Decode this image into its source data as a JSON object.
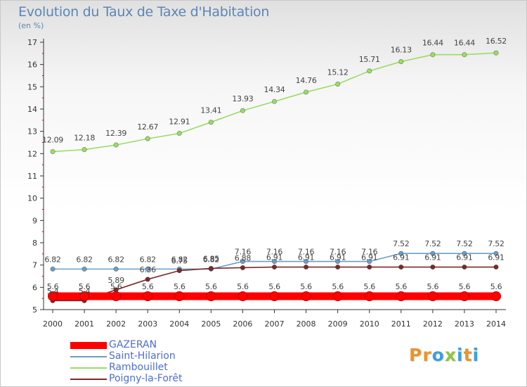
{
  "header": {
    "title": "Evolution du Taux de Taxe d'Habitation",
    "subtitle": "(en %)"
  },
  "logo": {
    "text": "Proxiti",
    "colors": [
      "#e8952c",
      "#e8952c",
      "#3da0d8",
      "#8dc63f",
      "#3da0d8",
      "#e8952c",
      "#3da0d8"
    ]
  },
  "chart_data": {
    "type": "line",
    "title": "Evolution du Taux de Taxe d'Habitation",
    "subtitle": "(en %)",
    "xlabel": "",
    "ylabel": "",
    "x": [
      2000,
      2001,
      2002,
      2003,
      2004,
      2005,
      2006,
      2007,
      2008,
      2009,
      2010,
      2011,
      2012,
      2013,
      2014
    ],
    "ylim": [
      5,
      17
    ],
    "yticks": [
      5,
      6,
      7,
      8,
      9,
      10,
      11,
      12,
      13,
      14,
      15,
      16,
      17
    ],
    "grid": false,
    "legend_position": "bottom-left",
    "series": [
      {
        "name": "GAZERAN",
        "color": "#ff0000",
        "values": [
          5.6,
          5.6,
          5.6,
          5.6,
          5.6,
          5.6,
          5.6,
          5.6,
          5.6,
          5.6,
          5.6,
          5.6,
          5.6,
          5.6,
          5.6
        ],
        "labels": [
          "5.6",
          "5.6",
          "5.6",
          "5.6",
          "5.6",
          "5.6",
          "5.6",
          "5.6",
          "5.6",
          "5.6",
          "5.6",
          "5.6",
          "5.6",
          "5.6",
          "5.6"
        ]
      },
      {
        "name": "Saint-Hilarion",
        "color": "#6b9fc8",
        "values": [
          6.82,
          6.82,
          6.82,
          6.82,
          6.82,
          6.82,
          7.16,
          7.16,
          7.16,
          7.16,
          7.16,
          7.52,
          7.52,
          7.52,
          7.52
        ],
        "labels": [
          "6.82",
          "6.82",
          "6.82",
          "6.82",
          "6.82",
          "6.82",
          "7.16",
          "7.16",
          "7.16",
          "7.16",
          "7.16",
          "7.52",
          "7.52",
          "7.52",
          "7.52"
        ]
      },
      {
        "name": "Rambouillet",
        "color": "#99dd66",
        "values": [
          12.09,
          12.18,
          12.39,
          12.67,
          12.91,
          13.41,
          13.93,
          14.34,
          14.76,
          15.12,
          15.71,
          16.13,
          16.44,
          16.44,
          16.52
        ],
        "labels": [
          "12.09",
          "12.18",
          "12.39",
          "12.67",
          "12.91",
          "13.41",
          "13.93",
          "14.34",
          "14.76",
          "15.12",
          "15.71",
          "16.13",
          "16.44",
          "16.44",
          "16.52"
        ]
      },
      {
        "name": "Poigny-la-Forêt",
        "color": "#7a2a2a",
        "values": [
          5.4,
          5.4,
          5.89,
          6.36,
          6.75,
          6.85,
          6.88,
          6.91,
          6.91,
          6.91,
          6.91,
          6.91,
          6.91,
          6.91,
          6.91
        ],
        "labels": [
          "5.4",
          "5.4",
          "5.89",
          "6.36",
          "6.75",
          "6.85",
          "6.88",
          "6.91",
          "6.91",
          "6.91",
          "6.91",
          "6.91",
          "6.91",
          "6.91",
          "6.91"
        ]
      }
    ]
  }
}
